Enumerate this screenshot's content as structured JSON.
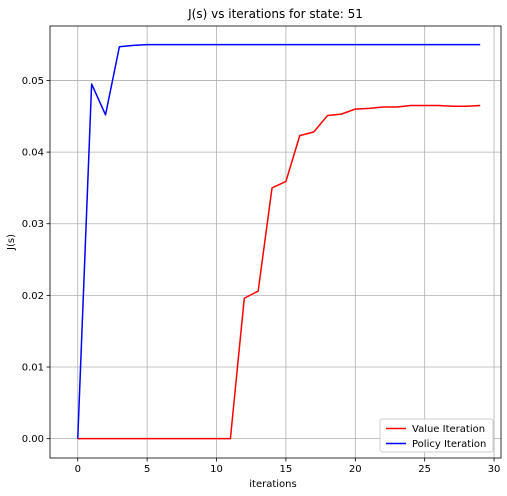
{
  "figure": {
    "background": "#ffffff"
  },
  "chart_data": {
    "type": "line",
    "title": "J(s) vs iterations for state: 51",
    "xlabel": "iterations",
    "ylabel": "J(s)",
    "xlim": [
      -2,
      30.5
    ],
    "ylim": [
      -0.0027,
      0.0576
    ],
    "xticks": [
      0,
      5,
      10,
      15,
      20,
      25,
      30
    ],
    "yticks": [
      0.0,
      0.01,
      0.02,
      0.03,
      0.04,
      0.05
    ],
    "xtick_labels": [
      "0",
      "5",
      "10",
      "15",
      "20",
      "25",
      "30"
    ],
    "ytick_labels": [
      "0.00",
      "0.01",
      "0.02",
      "0.03",
      "0.04",
      "0.05"
    ],
    "grid": true,
    "legend_position": "bottom-right",
    "x": [
      0,
      1,
      2,
      3,
      4,
      5,
      6,
      7,
      8,
      9,
      10,
      11,
      12,
      13,
      14,
      15,
      16,
      17,
      18,
      19,
      20,
      21,
      22,
      23,
      24,
      25,
      26,
      27,
      28,
      29
    ],
    "series": [
      {
        "name": "Value Iteration",
        "color": "#ff0000",
        "values": [
          0,
          0,
          0,
          0,
          0,
          0,
          0,
          0,
          0,
          0,
          0,
          0,
          0.0196,
          0.0206,
          0.035,
          0.0359,
          0.0423,
          0.0428,
          0.0451,
          0.0453,
          0.046,
          0.0461,
          0.0463,
          0.0463,
          0.0465,
          0.0465,
          0.0465,
          0.0464,
          0.0464,
          0.0465
        ]
      },
      {
        "name": "Policy Iteration",
        "color": "#0000ff",
        "values": [
          0,
          0.0495,
          0.0452,
          0.0547,
          0.0549,
          0.055,
          0.055,
          0.055,
          0.055,
          0.055,
          0.055,
          0.055,
          0.055,
          0.055,
          0.055,
          0.055,
          0.055,
          0.055,
          0.055,
          0.055,
          0.055,
          0.055,
          0.055,
          0.055,
          0.055,
          0.055,
          0.055,
          0.055,
          0.055,
          0.055
        ]
      }
    ]
  }
}
